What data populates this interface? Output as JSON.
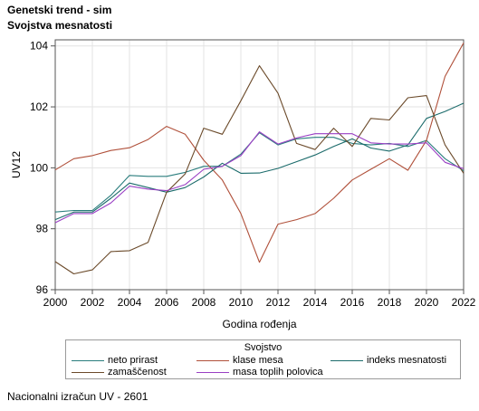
{
  "title": "Genetski trend - sim",
  "subtitle": "Svojstva mesnatosti",
  "footnote": "Nacionalni izračun UV - 2601",
  "chart_data": {
    "type": "line",
    "xlabel": "Godina rođenja",
    "ylabel": "UV12",
    "xlim": [
      2000,
      2022
    ],
    "ylim": [
      96,
      104.2
    ],
    "x_ticks": [
      "2000",
      "2002",
      "2004",
      "2006",
      "2008",
      "2010",
      "2012",
      "2014",
      "2016",
      "2018",
      "2020",
      "2022"
    ],
    "y_ticks": [
      "96",
      "98",
      "100",
      "102",
      "104"
    ],
    "grid": true,
    "legend_title": "Svojstvo",
    "legend_position": "bottom",
    "x": [
      2000,
      2001,
      2002,
      2003,
      2004,
      2005,
      2006,
      2007,
      2008,
      2009,
      2010,
      2011,
      2012,
      2013,
      2014,
      2015,
      2016,
      2017,
      2018,
      2019,
      2020,
      2021,
      2022
    ],
    "series": [
      {
        "name": "neto prirast",
        "color": "#2a7d7d",
        "values": [
          98.55,
          98.6,
          98.6,
          99.1,
          99.75,
          99.72,
          99.72,
          99.85,
          100.05,
          100.05,
          100.45,
          101.15,
          100.75,
          100.95,
          101.0,
          101.0,
          100.8,
          100.75,
          100.8,
          100.7,
          100.9,
          100.3,
          99.9
        ]
      },
      {
        "name": "klase mesa",
        "color": "#b0503a",
        "values": [
          99.93,
          100.3,
          100.4,
          100.57,
          100.66,
          100.93,
          101.36,
          101.1,
          100.25,
          99.6,
          98.5,
          96.9,
          98.15,
          98.3,
          98.5,
          99.0,
          99.6,
          99.95,
          100.3,
          99.92,
          100.9,
          103.0,
          104.1
        ]
      },
      {
        "name": "indeks mesnatosti",
        "color": "#1b6b6b",
        "values": [
          98.3,
          98.55,
          98.55,
          99.0,
          99.5,
          99.35,
          99.2,
          99.35,
          99.7,
          100.15,
          99.82,
          99.83,
          99.98,
          100.2,
          100.42,
          100.7,
          100.95,
          100.65,
          100.55,
          100.75,
          101.62,
          101.85,
          102.12
        ]
      },
      {
        "name": "zamaščenost",
        "color": "#6b4a2a",
        "values": [
          96.92,
          96.52,
          96.65,
          97.25,
          97.28,
          97.55,
          99.2,
          99.8,
          101.3,
          101.1,
          102.2,
          103.35,
          102.45,
          100.8,
          100.6,
          101.3,
          100.7,
          101.62,
          101.57,
          102.3,
          102.37,
          100.75,
          99.82
        ]
      },
      {
        "name": "masa toplih polovica",
        "color": "#9a3fc4",
        "values": [
          98.2,
          98.5,
          98.5,
          98.85,
          99.4,
          99.3,
          99.25,
          99.45,
          99.95,
          100.05,
          100.4,
          101.18,
          100.78,
          100.98,
          101.12,
          101.12,
          101.12,
          100.82,
          100.78,
          100.78,
          100.82,
          100.18,
          99.97
        ]
      }
    ]
  }
}
